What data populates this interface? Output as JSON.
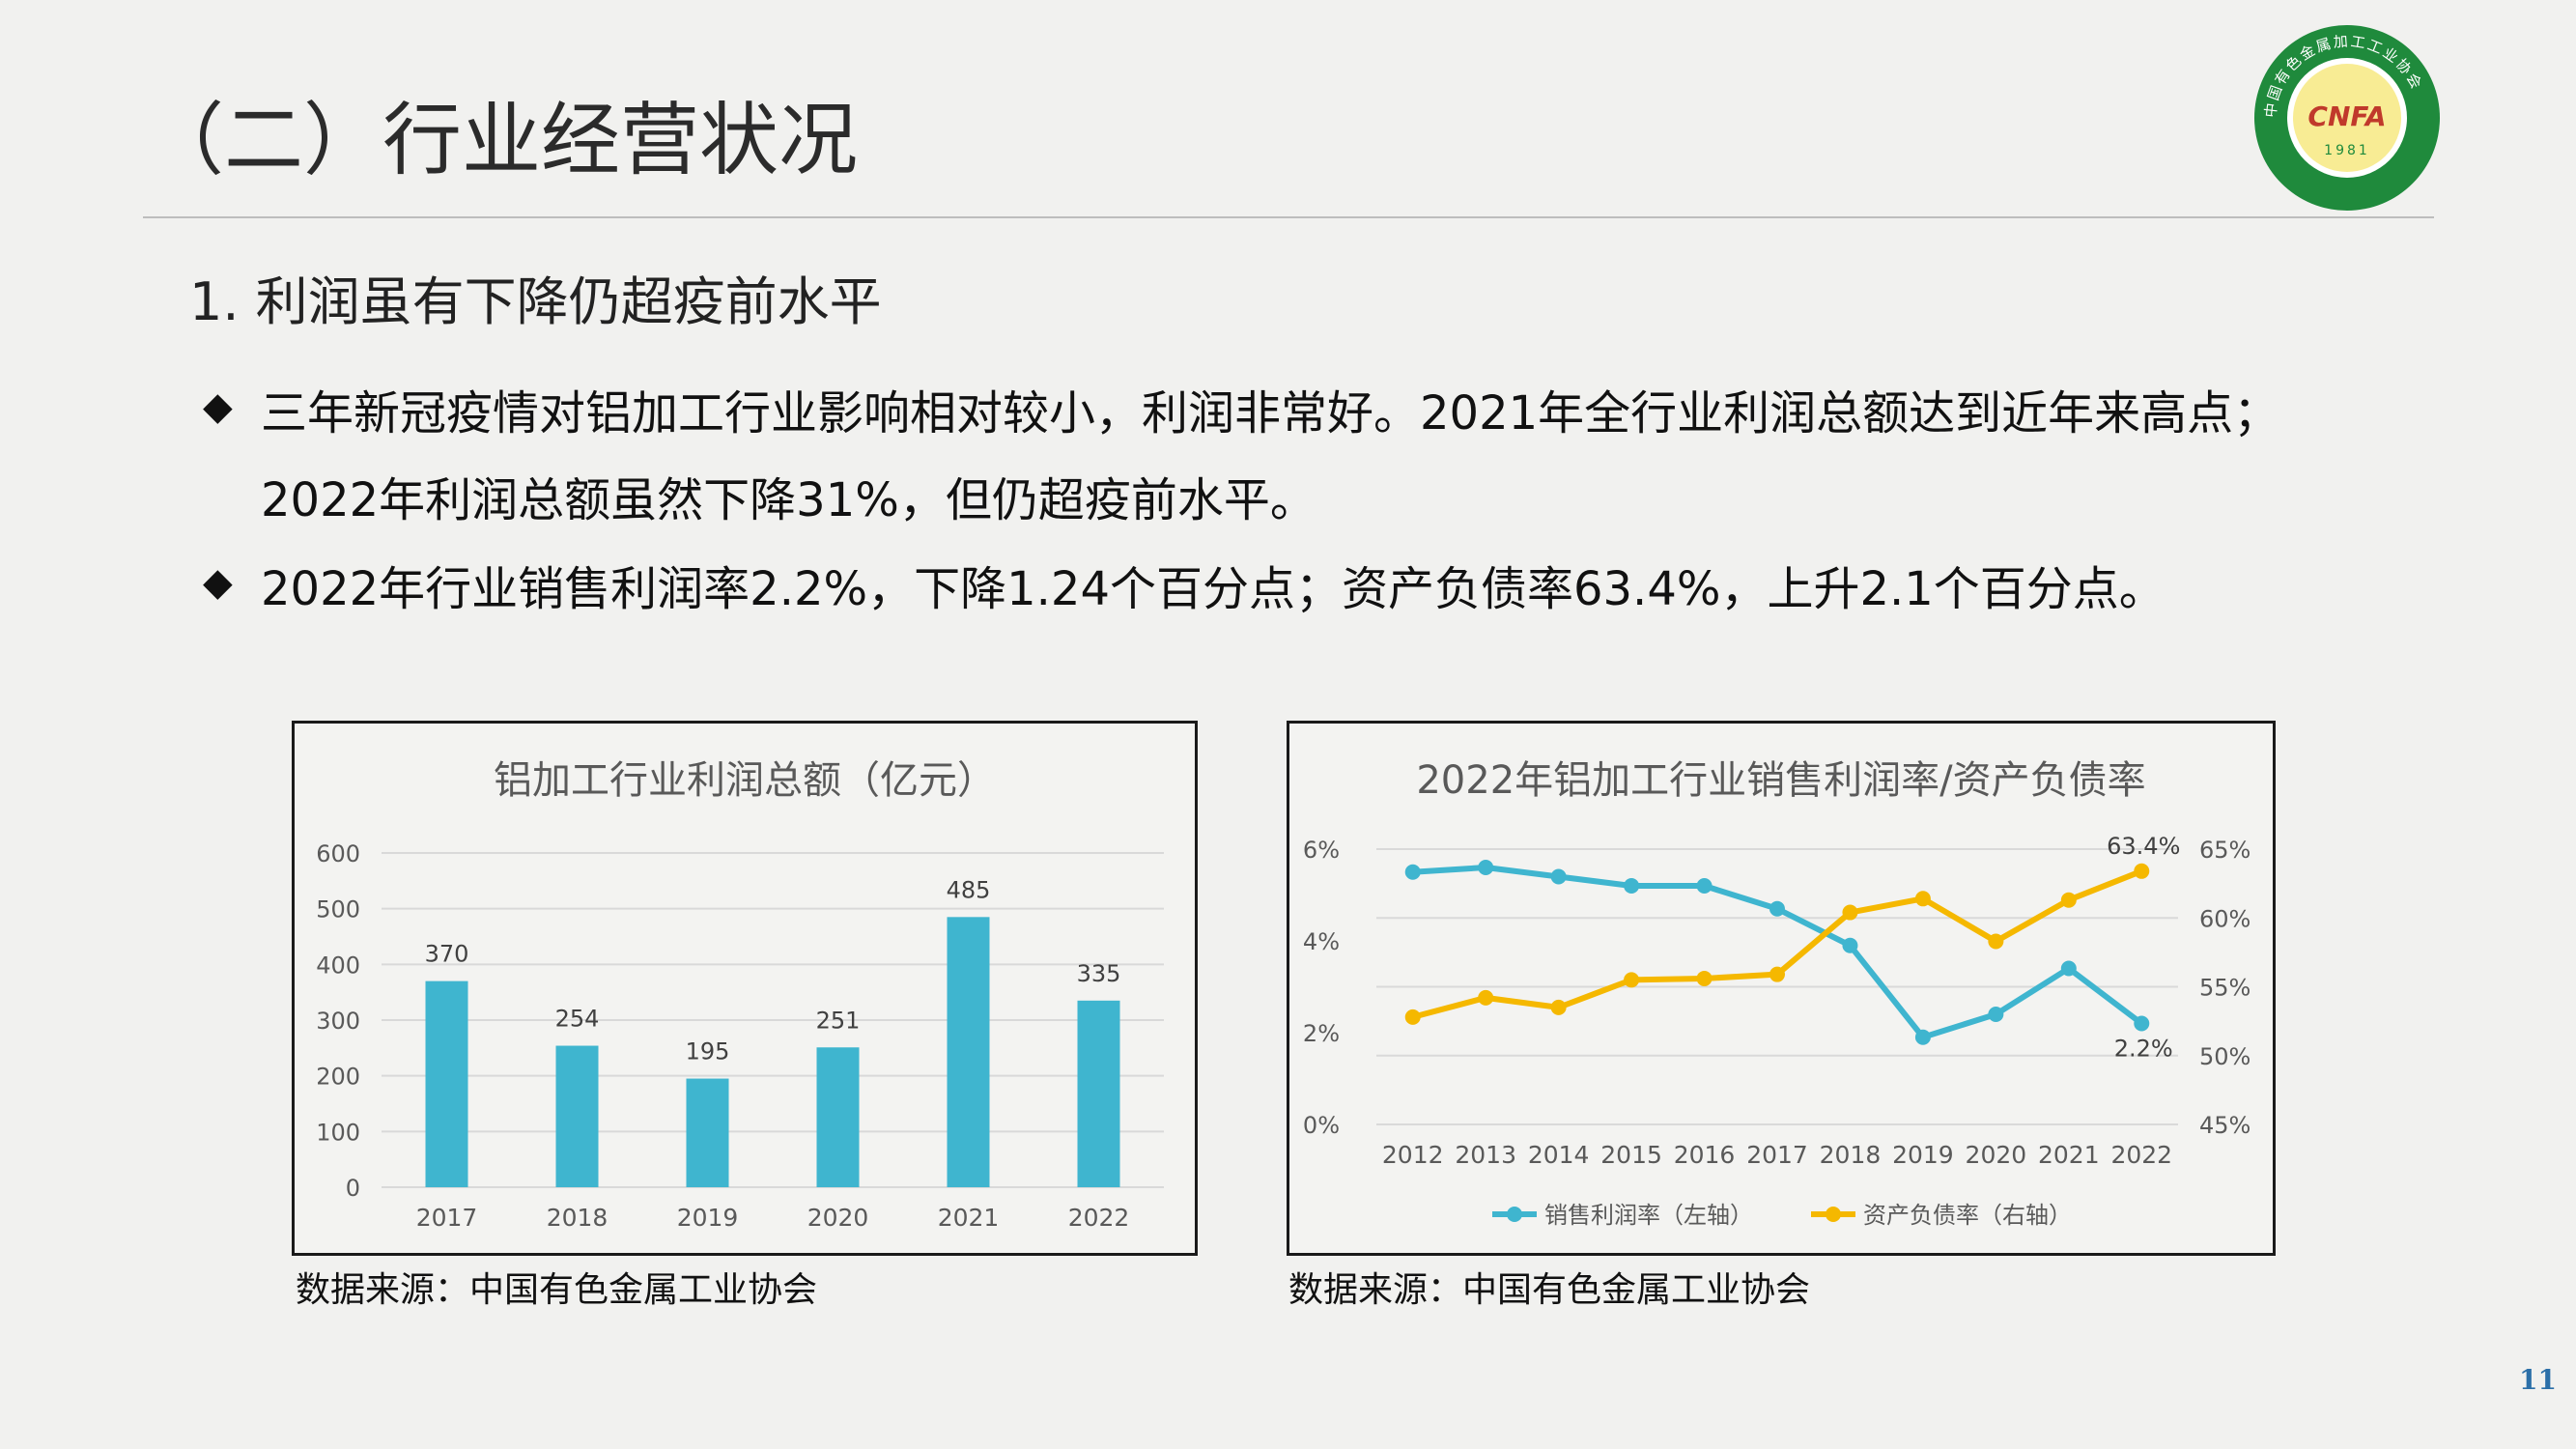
{
  "slide": {
    "title": "（二）行业经营状况",
    "subtitle": "1. 利润虽有下降仍超疫前水平",
    "page_number": "11"
  },
  "logo": {
    "text": "CNFA",
    "year": "1981",
    "ring_text": "中国有色金属加工工业协会",
    "colors": {
      "ring": "#1f8a3c",
      "inner": "#f4e04d",
      "text": "#c0392b"
    }
  },
  "bullets": [
    {
      "icon": "diamond-bullet-icon",
      "lines": [
        "三年新冠疫情对铝加工行业影响相对较小，利润非常好。2021年全行业利润总额达到近年来高点；",
        "2022年利润总额虽然下降31%，但仍超疫前水平。"
      ]
    },
    {
      "icon": "diamond-bullet-icon",
      "lines": [
        "2022年行业销售利润率2.2%，下降1.24个百分点；资产负债率63.4%，上升2.1个百分点。"
      ]
    }
  ],
  "sources": {
    "left": "数据来源：中国有色金属工业协会",
    "right": "数据来源：中国有色金属工业协会"
  },
  "chart_data": [
    {
      "type": "bar",
      "title": "铝加工行业利润总额（亿元）",
      "categories": [
        "2017",
        "2018",
        "2019",
        "2020",
        "2021",
        "2022"
      ],
      "values": [
        370,
        254,
        195,
        251,
        485,
        335
      ],
      "data_labels": [
        "370",
        "254",
        "195",
        "251",
        "485",
        "335"
      ],
      "ylim": [
        0,
        600
      ],
      "yticks": [
        "0",
        "100",
        "200",
        "300",
        "400",
        "500",
        "600"
      ],
      "grid": true,
      "color": "#3fb5cf"
    },
    {
      "type": "line",
      "title": "2022年铝加工行业销售利润率/资产负债率",
      "categories": [
        "2012",
        "2013",
        "2014",
        "2015",
        "2016",
        "2017",
        "2018",
        "2019",
        "2020",
        "2021",
        "2022"
      ],
      "series": [
        {
          "name": "销售利润率（左轴）",
          "axis": "left",
          "values": [
            5.5,
            5.6,
            5.4,
            5.2,
            5.2,
            4.7,
            3.9,
            1.9,
            2.4,
            3.4,
            2.2
          ],
          "color": "#3fb5cf",
          "end_label": "2.2%"
        },
        {
          "name": "资产负债率（右轴）",
          "axis": "right",
          "values": [
            52.8,
            54.2,
            53.5,
            55.5,
            55.6,
            55.9,
            60.4,
            61.4,
            58.3,
            61.3,
            63.4
          ],
          "color": "#f5b800",
          "end_label": "63.4%"
        }
      ],
      "ylim_left": [
        0,
        6
      ],
      "yticks_left": [
        "0%",
        "2%",
        "4%",
        "6%"
      ],
      "ylim_right": [
        45,
        65
      ],
      "yticks_right": [
        "45%",
        "50%",
        "55%",
        "60%",
        "65%"
      ],
      "grid": true,
      "legend": "bottom"
    }
  ]
}
